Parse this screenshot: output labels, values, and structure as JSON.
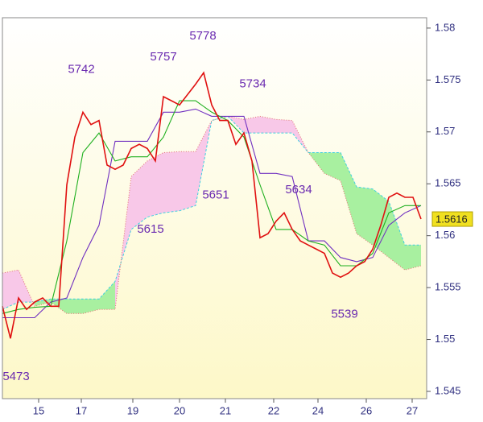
{
  "chart_data": {
    "type": "line",
    "xlim": [
      0,
      52.7
    ],
    "ylim": [
      1.5443,
      1.581
    ],
    "xticks": [
      {
        "value": 4.5,
        "label": "15"
      },
      {
        "value": 9.8,
        "label": "17"
      },
      {
        "value": 16.2,
        "label": "19"
      },
      {
        "value": 22.0,
        "label": "20"
      },
      {
        "value": 27.7,
        "label": "21"
      },
      {
        "value": 33.7,
        "label": "22"
      },
      {
        "value": 39.2,
        "label": "24"
      },
      {
        "value": 45.2,
        "label": "26"
      },
      {
        "value": 50.9,
        "label": "27"
      }
    ],
    "yticks": [
      1.545,
      1.55,
      1.555,
      1.56,
      1.565,
      1.57,
      1.575,
      1.58
    ],
    "last_price": 1.5616,
    "cloud": {
      "x": [
        0,
        2,
        4,
        6,
        8,
        10,
        12,
        14,
        16,
        18,
        20,
        22,
        24,
        26,
        28,
        30,
        32,
        34,
        36,
        38,
        40,
        42,
        44,
        46,
        48,
        50,
        52
      ],
      "span_a": [
        1.5529,
        1.5536,
        1.5536,
        1.5539,
        1.5539,
        1.5539,
        1.5539,
        1.5556,
        1.5606,
        1.5618,
        1.5622,
        1.5624,
        1.5629,
        1.5711,
        1.5715,
        1.5699,
        1.5699,
        1.5699,
        1.5699,
        1.568,
        1.568,
        1.568,
        1.5647,
        1.5645,
        1.5633,
        1.5591,
        1.5591
      ],
      "span_b": [
        1.5564,
        1.5567,
        1.5532,
        1.5536,
        1.5525,
        1.5525,
        1.5529,
        1.5529,
        1.5657,
        1.5672,
        1.568,
        1.5681,
        1.5681,
        1.5711,
        1.5715,
        1.5712,
        1.5715,
        1.5712,
        1.5711,
        1.568,
        1.566,
        1.5653,
        1.5602,
        1.5591,
        1.5579,
        1.5567,
        1.5571
      ],
      "up_color": "#a8f0a0",
      "down_color": "#f8c8e8",
      "span_a_color": "#40d0e0",
      "span_b_color": "#e07070"
    },
    "series": [
      {
        "color": "#7030c0",
        "x": [
          0,
          2,
          4,
          6,
          8,
          10,
          12,
          14,
          16,
          18,
          20,
          22,
          24,
          26,
          28,
          30,
          32,
          34,
          36,
          38,
          40,
          42,
          44,
          46,
          48,
          50,
          52
        ],
        "values": [
          1.5521,
          1.5521,
          1.5521,
          1.5536,
          1.554,
          1.5579,
          1.561,
          1.5691,
          1.5691,
          1.5691,
          1.5719,
          1.5719,
          1.5722,
          1.5715,
          1.5715,
          1.5715,
          1.566,
          1.566,
          1.5657,
          1.5595,
          1.5595,
          1.5579,
          1.5575,
          1.5579,
          1.561,
          1.5622,
          1.5629
        ]
      },
      {
        "color": "#20b020",
        "x": [
          0,
          2,
          4,
          6,
          8,
          10,
          12,
          14,
          16,
          18,
          20,
          22,
          24,
          26,
          28,
          30,
          32,
          34,
          36,
          38,
          40,
          42,
          44,
          46,
          48,
          50,
          52
        ],
        "values": [
          1.5525,
          1.5529,
          1.5531,
          1.5532,
          1.5595,
          1.568,
          1.5699,
          1.5672,
          1.5676,
          1.5676,
          1.5695,
          1.573,
          1.573,
          1.5719,
          1.5711,
          1.5695,
          1.5649,
          1.5606,
          1.5606,
          1.5595,
          1.5591,
          1.5571,
          1.5571,
          1.5583,
          1.5622,
          1.5629,
          1.5629
        ]
      },
      {
        "color": "#e01010",
        "x": [
          0,
          1,
          2,
          3,
          4,
          5,
          6,
          7,
          8,
          9,
          10,
          11,
          12,
          13,
          14,
          15,
          16,
          17,
          18,
          19,
          20,
          21,
          22,
          23,
          24,
          25,
          26,
          27,
          28,
          29,
          30,
          31,
          32,
          33,
          34,
          35,
          36,
          37,
          38,
          39,
          40,
          41,
          42,
          43,
          44,
          45,
          46,
          47,
          48,
          49,
          50,
          51,
          52
        ],
        "values": [
          1.5532,
          1.5501,
          1.554,
          1.5529,
          1.5536,
          1.554,
          1.5532,
          1.5532,
          1.5649,
          1.5695,
          1.5719,
          1.5707,
          1.5711,
          1.5668,
          1.5664,
          1.5668,
          1.5684,
          1.5688,
          1.5684,
          1.5672,
          1.5734,
          1.573,
          1.5726,
          1.5736,
          1.5746,
          1.5757,
          1.5726,
          1.5711,
          1.5711,
          1.5688,
          1.5699,
          1.5672,
          1.5598,
          1.5602,
          1.5614,
          1.5622,
          1.5606,
          1.5595,
          1.5591,
          1.5587,
          1.5583,
          1.5564,
          1.556,
          1.5564,
          1.5571,
          1.5575,
          1.5587,
          1.561,
          1.5637,
          1.5641,
          1.5637,
          1.5637,
          1.5616
        ]
      }
    ],
    "annotations": [
      {
        "text": "5473",
        "x": 1.7,
        "y": 1.5464
      },
      {
        "text": "5742",
        "x": 9.8,
        "y": 1.576
      },
      {
        "text": "5757",
        "x": 20.0,
        "y": 1.5772
      },
      {
        "text": "5778",
        "x": 24.9,
        "y": 1.5792
      },
      {
        "text": "5734",
        "x": 31.1,
        "y": 1.5746
      },
      {
        "text": "5651",
        "x": 26.5,
        "y": 1.5639
      },
      {
        "text": "5615",
        "x": 18.4,
        "y": 1.5606
      },
      {
        "text": "5634",
        "x": 36.8,
        "y": 1.5644
      },
      {
        "text": "5539",
        "x": 42.5,
        "y": 1.5524
      }
    ]
  }
}
